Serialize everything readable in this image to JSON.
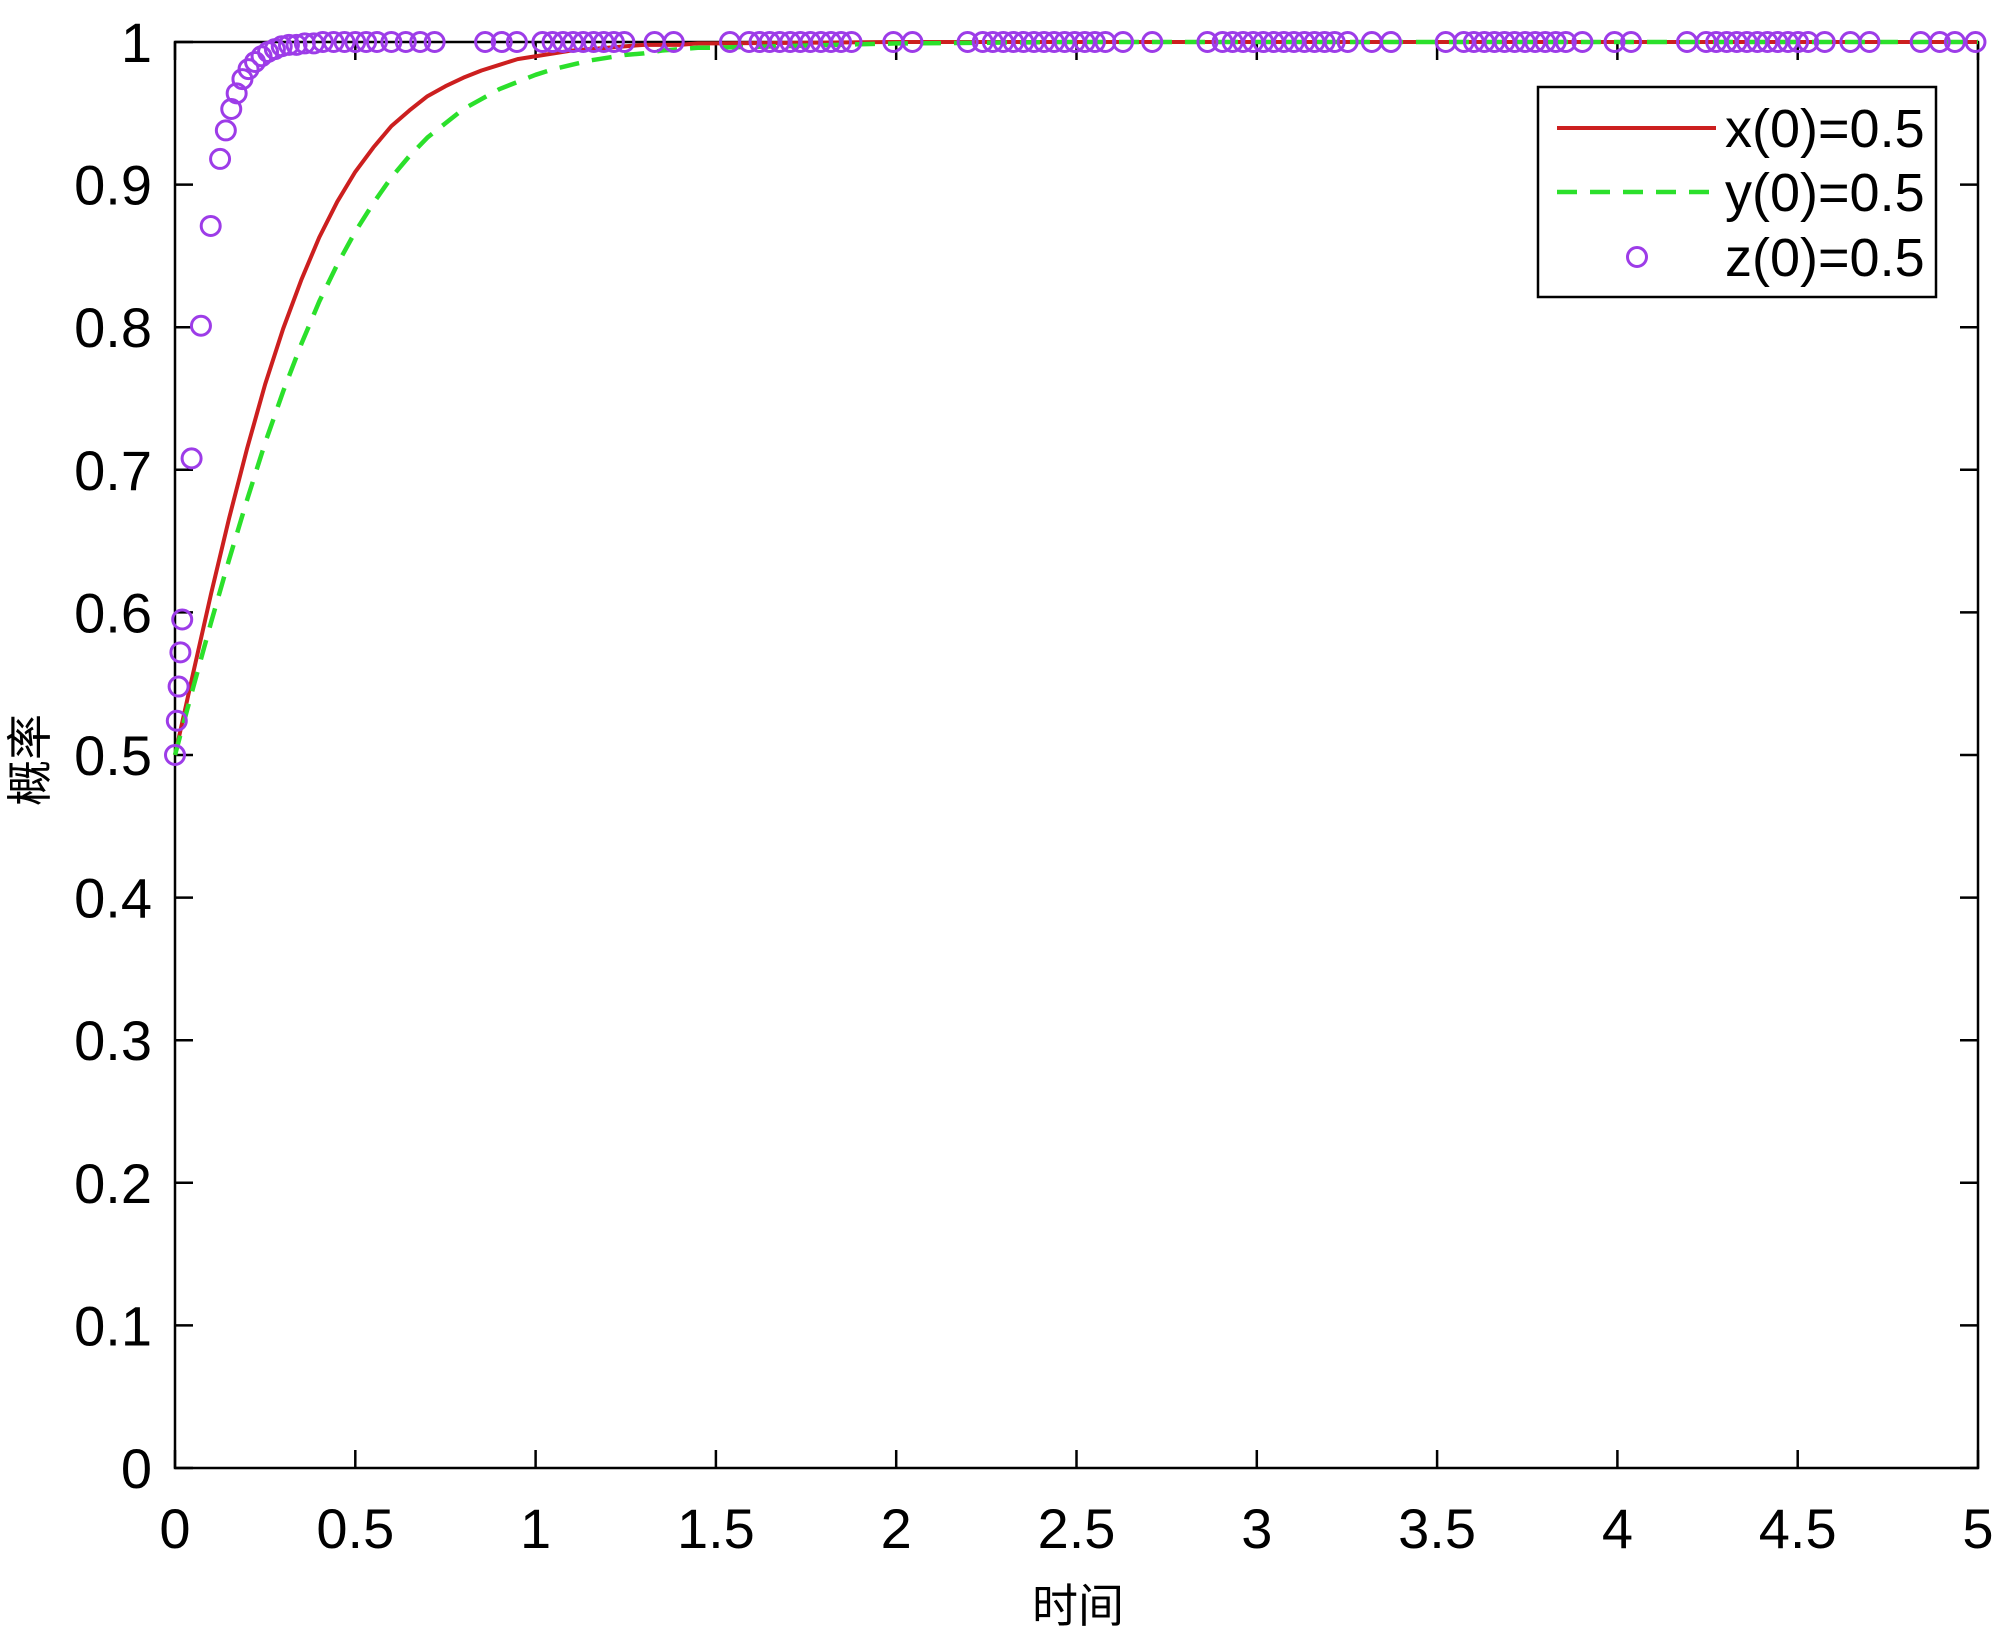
{
  "chart_data": {
    "type": "line",
    "xlabel": "时间",
    "ylabel": "概率",
    "xlim": [
      0,
      5
    ],
    "ylim": [
      0,
      1
    ],
    "xticks": [
      "0",
      "0.5",
      "1",
      "1.5",
      "2",
      "2.5",
      "3",
      "3.5",
      "4",
      "4.5",
      "5"
    ],
    "yticks": [
      "0",
      "0.1",
      "0.2",
      "0.3",
      "0.4",
      "0.5",
      "0.6",
      "0.7",
      "0.8",
      "0.9",
      "1"
    ],
    "grid": false,
    "legend_position": "top-right",
    "series": [
      {
        "name": "x(0)=0.5",
        "style": "solid",
        "color": "#cc1f1f",
        "x": [
          0,
          0.05,
          0.1,
          0.15,
          0.2,
          0.25,
          0.3,
          0.35,
          0.4,
          0.45,
          0.5,
          0.55,
          0.6,
          0.65,
          0.7,
          0.75,
          0.8,
          0.85,
          0.9,
          0.95,
          1,
          1.05,
          1.1,
          1.15,
          1.2,
          1.25,
          1.3,
          1.35,
          1.4,
          1.45,
          1.5,
          2,
          2.5,
          3,
          3.5,
          4,
          4.5,
          5
        ],
        "values": [
          0.5,
          0.557,
          0.613,
          0.666,
          0.715,
          0.76,
          0.799,
          0.833,
          0.863,
          0.888,
          0.909,
          0.926,
          0.941,
          0.952,
          0.962,
          0.969,
          0.975,
          0.98,
          0.984,
          0.988,
          0.99,
          0.992,
          0.994,
          0.995,
          0.996,
          0.997,
          0.998,
          0.998,
          0.998,
          0.999,
          0.999,
          1,
          1,
          1,
          1,
          1,
          1,
          1
        ]
      },
      {
        "name": "y(0)=0.5",
        "style": "dashed",
        "color": "#2be02b",
        "x": [
          0,
          0.05,
          0.1,
          0.15,
          0.2,
          0.25,
          0.3,
          0.35,
          0.4,
          0.45,
          0.5,
          0.55,
          0.6,
          0.65,
          0.7,
          0.75,
          0.8,
          0.85,
          0.9,
          0.95,
          1,
          1.05,
          1.1,
          1.15,
          1.2,
          1.25,
          1.3,
          1.35,
          1.4,
          1.45,
          1.5,
          2,
          2.5,
          3,
          3.5,
          4,
          4.5,
          5
        ],
        "values": [
          0.5,
          0.547,
          0.593,
          0.637,
          0.679,
          0.719,
          0.755,
          0.788,
          0.818,
          0.844,
          0.867,
          0.887,
          0.905,
          0.92,
          0.933,
          0.943,
          0.953,
          0.96,
          0.967,
          0.972,
          0.977,
          0.981,
          0.984,
          0.987,
          0.989,
          0.991,
          0.992,
          0.994,
          0.995,
          0.996,
          0.996,
          0.999,
          1,
          1,
          1,
          1,
          1,
          1
        ]
      },
      {
        "name": "z(0)=0.5",
        "style": "markers",
        "color": "#9d3ce8",
        "x": [
          0,
          0.005,
          0.01,
          0.015,
          0.02,
          0.046,
          0.072,
          0.099,
          0.125,
          0.141,
          0.156,
          0.171,
          0.187,
          0.204,
          0.222,
          0.24,
          0.258,
          0.277,
          0.296,
          0.316,
          0.337,
          0.36,
          0.385,
          0.41,
          0.44,
          0.47,
          0.5,
          0.53,
          0.56,
          0.6,
          0.64,
          0.68,
          0.72,
          0.86,
          0.906,
          0.948,
          1.019,
          1.047,
          1.076,
          1.104,
          1.132,
          1.161,
          1.189,
          1.217,
          1.246,
          1.33,
          1.383,
          1.539,
          1.592,
          1.621,
          1.649,
          1.677,
          1.706,
          1.734,
          1.762,
          1.791,
          1.819,
          1.847,
          1.876,
          1.992,
          2.045,
          2.198,
          2.24,
          2.268,
          2.297,
          2.325,
          2.353,
          2.382,
          2.41,
          2.438,
          2.467,
          2.495,
          2.523,
          2.551,
          2.58,
          2.629,
          2.71,
          2.863,
          2.905,
          2.933,
          2.962,
          2.99,
          3.018,
          3.047,
          3.075,
          3.103,
          3.132,
          3.16,
          3.188,
          3.216,
          3.252,
          3.319,
          3.372,
          3.524,
          3.574,
          3.602,
          3.631,
          3.659,
          3.687,
          3.715,
          3.744,
          3.772,
          3.8,
          3.829,
          3.857,
          3.903,
          3.992,
          4.038,
          4.193,
          4.246,
          4.274,
          4.303,
          4.331,
          4.359,
          4.388,
          4.416,
          4.444,
          4.473,
          4.501,
          4.529,
          4.575,
          4.646,
          4.699,
          4.841,
          4.894,
          4.936,
          4.993
        ],
        "values": [
          0.5,
          0.524,
          0.548,
          0.572,
          0.595,
          0.708,
          0.801,
          0.871,
          0.918,
          0.938,
          0.953,
          0.964,
          0.974,
          0.981,
          0.986,
          0.99,
          0.993,
          0.995,
          0.997,
          0.998,
          0.998,
          0.999,
          0.999,
          1,
          1,
          1,
          1,
          1,
          1,
          1,
          1,
          1,
          1,
          1,
          1,
          1,
          1,
          1,
          1,
          1,
          1,
          1,
          1,
          1,
          1,
          1,
          1,
          1,
          1,
          1,
          1,
          1,
          1,
          1,
          1,
          1,
          1,
          1,
          1,
          1,
          1,
          1,
          1,
          1,
          1,
          1,
          1,
          1,
          1,
          1,
          1,
          1,
          1,
          1,
          1,
          1,
          1,
          1,
          1,
          1,
          1,
          1,
          1,
          1,
          1,
          1,
          1,
          1,
          1,
          1,
          1,
          1,
          1,
          1,
          1,
          1,
          1,
          1,
          1,
          1,
          1,
          1,
          1,
          1,
          1,
          1,
          1,
          1,
          1,
          1,
          1,
          1,
          1,
          1,
          1,
          1,
          1,
          1,
          1,
          1,
          1,
          1,
          1,
          1,
          1,
          1,
          1
        ]
      }
    ]
  }
}
